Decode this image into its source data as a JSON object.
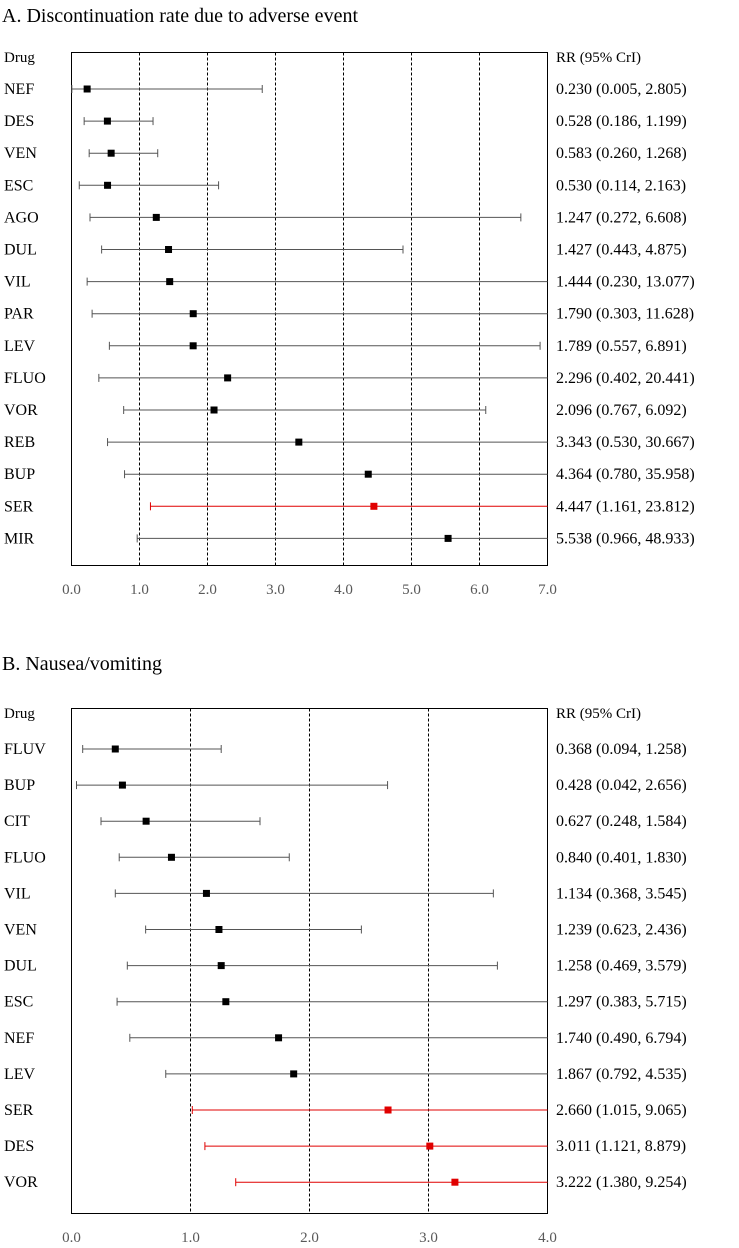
{
  "chart_data": [
    {
      "type": "forest",
      "title": "A. Discontinuation rate due to adverse event",
      "drug_header": "Drug",
      "rr_header": "RR (95% CrI)",
      "xlim": [
        0,
        7
      ],
      "xticks": [
        "0.0",
        "1.0",
        "2.0",
        "3.0",
        "4.0",
        "5.0",
        "6.0",
        "7.0"
      ],
      "xtick_values": [
        0,
        1,
        2,
        3,
        4,
        5,
        6,
        7
      ],
      "grid": "vertical dashed at each integer",
      "highlight_color": "#e00000",
      "default_color": "#000000",
      "rows": [
        {
          "drug": "NEF",
          "rr": 0.23,
          "lo": 0.005,
          "hi": 2.805,
          "label": "0.230 (0.005, 2.805)",
          "significant": false
        },
        {
          "drug": "DES",
          "rr": 0.528,
          "lo": 0.186,
          "hi": 1.199,
          "label": "0.528 (0.186, 1.199)",
          "significant": false
        },
        {
          "drug": "VEN",
          "rr": 0.583,
          "lo": 0.26,
          "hi": 1.268,
          "label": "0.583 (0.260, 1.268)",
          "significant": false
        },
        {
          "drug": "ESC",
          "rr": 0.53,
          "lo": 0.114,
          "hi": 2.163,
          "label": "0.530 (0.114, 2.163)",
          "significant": false
        },
        {
          "drug": "AGO",
          "rr": 1.247,
          "lo": 0.272,
          "hi": 6.608,
          "label": "1.247 (0.272, 6.608)",
          "significant": false
        },
        {
          "drug": "DUL",
          "rr": 1.427,
          "lo": 0.443,
          "hi": 4.875,
          "label": "1.427 (0.443, 4.875)",
          "significant": false
        },
        {
          "drug": "VIL",
          "rr": 1.444,
          "lo": 0.23,
          "hi": 13.077,
          "label": "1.444 (0.230, 13.077)",
          "significant": false
        },
        {
          "drug": "PAR",
          "rr": 1.79,
          "lo": 0.303,
          "hi": 11.628,
          "label": "1.790 (0.303, 11.628)",
          "significant": false
        },
        {
          "drug": "LEV",
          "rr": 1.789,
          "lo": 0.557,
          "hi": 6.891,
          "label": "1.789 (0.557, 6.891)",
          "significant": false
        },
        {
          "drug": "FLUO",
          "rr": 2.296,
          "lo": 0.402,
          "hi": 20.441,
          "label": "2.296 (0.402, 20.441)",
          "significant": false
        },
        {
          "drug": "VOR",
          "rr": 2.096,
          "lo": 0.767,
          "hi": 6.092,
          "label": "2.096 (0.767, 6.092)",
          "significant": false
        },
        {
          "drug": "REB",
          "rr": 3.343,
          "lo": 0.53,
          "hi": 30.667,
          "label": "3.343 (0.530, 30.667)",
          "significant": false
        },
        {
          "drug": "BUP",
          "rr": 4.364,
          "lo": 0.78,
          "hi": 35.958,
          "label": "4.364 (0.780, 35.958)",
          "significant": false
        },
        {
          "drug": "SER",
          "rr": 4.447,
          "lo": 1.161,
          "hi": 23.812,
          "label": "4.447 (1.161, 23.812)",
          "significant": true
        },
        {
          "drug": "MIR",
          "rr": 5.538,
          "lo": 0.966,
          "hi": 48.933,
          "label": "5.538 (0.966, 48.933)",
          "significant": false
        }
      ]
    },
    {
      "type": "forest",
      "title": "B. Nausea/vomiting",
      "drug_header": "Drug",
      "rr_header": "RR (95% CrI)",
      "xlim": [
        0,
        4
      ],
      "xticks": [
        "0.0",
        "1.0",
        "2.0",
        "3.0",
        "4.0"
      ],
      "xtick_values": [
        0,
        1,
        2,
        3,
        4
      ],
      "grid": "vertical dashed at each integer",
      "highlight_color": "#e00000",
      "default_color": "#000000",
      "rows": [
        {
          "drug": "FLUV",
          "rr": 0.368,
          "lo": 0.094,
          "hi": 1.258,
          "label": "0.368 (0.094, 1.258)",
          "significant": false
        },
        {
          "drug": "BUP",
          "rr": 0.428,
          "lo": 0.042,
          "hi": 2.656,
          "label": "0.428 (0.042, 2.656)",
          "significant": false
        },
        {
          "drug": "CIT",
          "rr": 0.627,
          "lo": 0.248,
          "hi": 1.584,
          "label": "0.627 (0.248, 1.584)",
          "significant": false
        },
        {
          "drug": "FLUO",
          "rr": 0.84,
          "lo": 0.401,
          "hi": 1.83,
          "label": "0.840 (0.401, 1.830)",
          "significant": false
        },
        {
          "drug": "VIL",
          "rr": 1.134,
          "lo": 0.368,
          "hi": 3.545,
          "label": "1.134 (0.368, 3.545)",
          "significant": false
        },
        {
          "drug": "VEN",
          "rr": 1.239,
          "lo": 0.623,
          "hi": 2.436,
          "label": "1.239 (0.623, 2.436)",
          "significant": false
        },
        {
          "drug": "DUL",
          "rr": 1.258,
          "lo": 0.469,
          "hi": 3.579,
          "label": "1.258 (0.469, 3.579)",
          "significant": false
        },
        {
          "drug": "ESC",
          "rr": 1.297,
          "lo": 0.383,
          "hi": 5.715,
          "label": "1.297 (0.383, 5.715)",
          "significant": false
        },
        {
          "drug": "NEF",
          "rr": 1.74,
          "lo": 0.49,
          "hi": 6.794,
          "label": "1.740 (0.490, 6.794)",
          "significant": false
        },
        {
          "drug": "LEV",
          "rr": 1.867,
          "lo": 0.792,
          "hi": 4.535,
          "label": "1.867 (0.792, 4.535)",
          "significant": false
        },
        {
          "drug": "SER",
          "rr": 2.66,
          "lo": 1.015,
          "hi": 9.065,
          "label": "2.660 (1.015, 9.065)",
          "significant": true
        },
        {
          "drug": "DES",
          "rr": 3.011,
          "lo": 1.121,
          "hi": 8.879,
          "label": "3.011 (1.121, 8.879)",
          "significant": true
        },
        {
          "drug": "VOR",
          "rr": 3.222,
          "lo": 1.38,
          "hi": 9.254,
          "label": "3.222 (1.380, 9.254)",
          "significant": true
        }
      ]
    }
  ]
}
